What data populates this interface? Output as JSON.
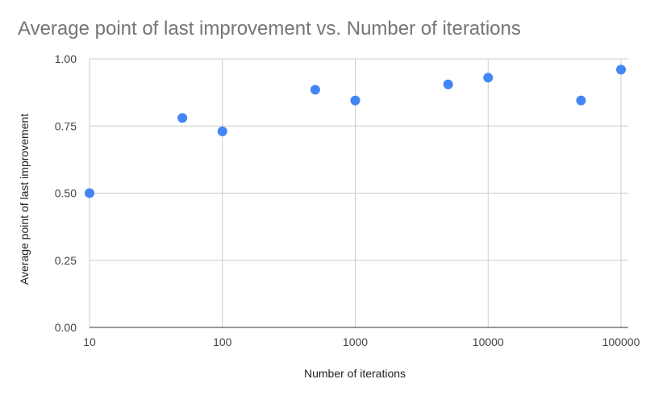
{
  "chart_data": {
    "type": "scatter",
    "title": "Average point of last improvement vs. Number of iterations",
    "xlabel": "Number of iterations",
    "ylabel": "Average point of last improvement",
    "x_scale": "log",
    "xlim": [
      10,
      100000
    ],
    "ylim": [
      0,
      1
    ],
    "x_ticks": [
      10,
      100,
      1000,
      10000,
      100000
    ],
    "x_tick_labels": [
      "10",
      "100",
      "1000",
      "10000",
      "100000"
    ],
    "y_ticks": [
      0,
      0.25,
      0.5,
      0.75,
      1
    ],
    "y_tick_labels": [
      "0.00",
      "0.25",
      "0.50",
      "0.75",
      "1.00"
    ],
    "grid": true,
    "legend": "none",
    "series": [
      {
        "color": "#4285f4",
        "points": [
          {
            "x": 10,
            "y": 0.5
          },
          {
            "x": 50,
            "y": 0.78
          },
          {
            "x": 100,
            "y": 0.73
          },
          {
            "x": 500,
            "y": 0.885
          },
          {
            "x": 1000,
            "y": 0.845
          },
          {
            "x": 5000,
            "y": 0.905
          },
          {
            "x": 10000,
            "y": 0.93
          },
          {
            "x": 50000,
            "y": 0.845
          },
          {
            "x": 100000,
            "y": 0.96
          }
        ]
      }
    ]
  }
}
